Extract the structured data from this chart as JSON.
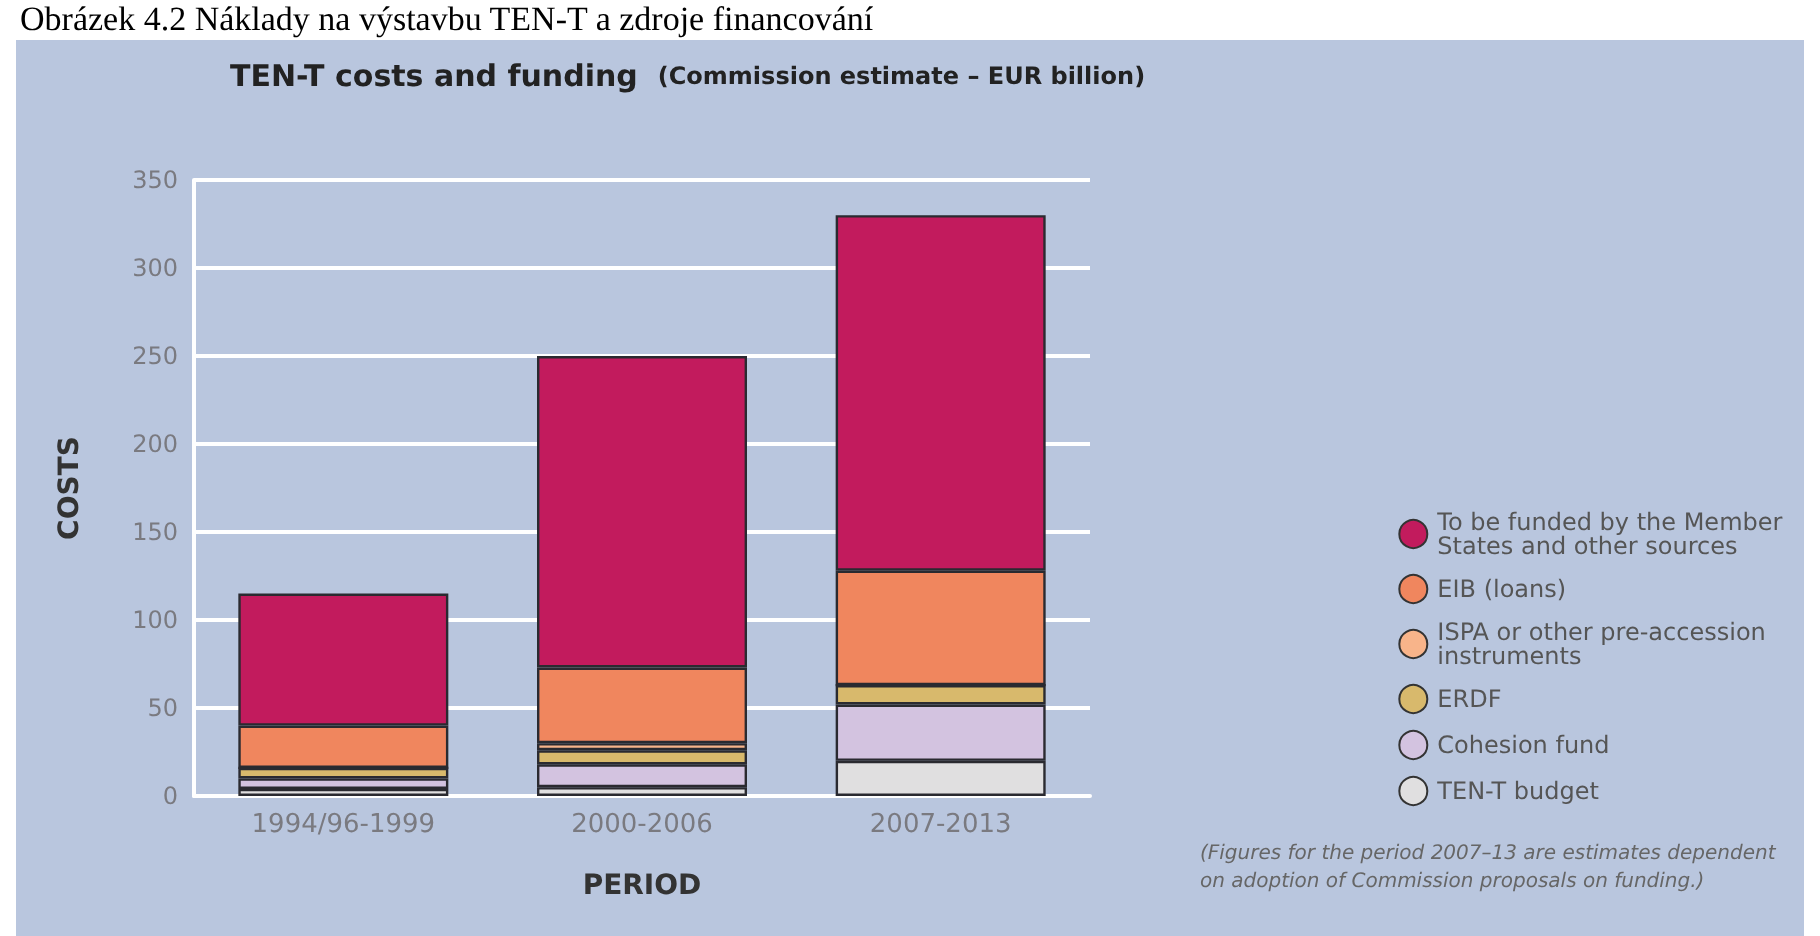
{
  "chart_data": {
    "type": "bar",
    "stacked": true,
    "title": "TEN-T costs and funding",
    "subtitle": "(Commission estimate – EUR billion)",
    "xlabel": "PERIOD",
    "ylabel": "COSTS",
    "categories": [
      "1994/96-1999",
      "2000-2006",
      "2007-2013"
    ],
    "series": [
      {
        "name": "TEN-T budget",
        "color": "#e0dfe0",
        "values": [
          4,
          5,
          20
        ]
      },
      {
        "name": "Cohesion fund",
        "color": "#d3c3e0",
        "values": [
          6,
          13,
          32
        ]
      },
      {
        "name": "ERDF",
        "color": "#d8b96c",
        "values": [
          6,
          8,
          11
        ]
      },
      {
        "name": "ISPA or other pre-accession instruments",
        "color": "#f8b48a",
        "values": [
          0,
          4,
          0
        ]
      },
      {
        "name": "EIB (loans)",
        "color": "#f0865e",
        "values": [
          24,
          43,
          65
        ]
      },
      {
        "name": "To be funded by the Member States and other sources",
        "color": "#c21b5d",
        "values": [
          75,
          177,
          202
        ]
      }
    ],
    "ylim": [
      0,
      350
    ],
    "yticks": [
      0,
      50,
      100,
      150,
      200,
      250,
      300,
      350
    ],
    "grid": "y",
    "legend": "right",
    "annotations": [
      "Obrázek 4.2 Náklady na výstavbu TEN-T a zdroje financování",
      "(Figures for the period 2007–13 are estimates dependent on adoption of Commission proposals on funding.)"
    ]
  }
}
